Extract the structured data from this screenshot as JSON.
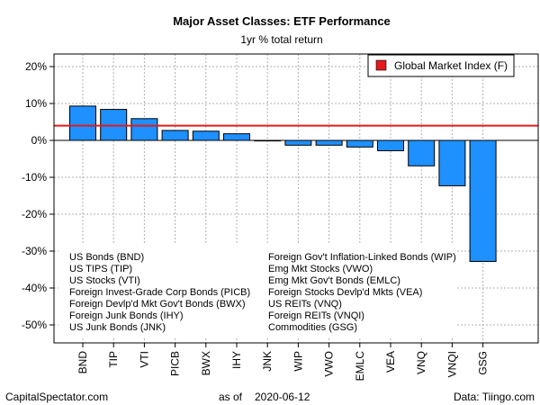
{
  "chart_data": {
    "type": "bar",
    "title": "Major Asset Classes: ETF Performance",
    "subtitle": "1yr % total return",
    "categories": [
      "BND",
      "TIP",
      "VTI",
      "PICB",
      "BWX",
      "IHY",
      "JNK",
      "WIP",
      "VWO",
      "EMLC",
      "VEA",
      "VNQ",
      "VNQI",
      "GSG"
    ],
    "values": [
      9.3,
      8.4,
      5.9,
      2.7,
      2.5,
      1.8,
      -0.1,
      -1.3,
      -1.3,
      -1.8,
      -2.8,
      -6.9,
      -12.3,
      -32.8
    ],
    "bar_color": "#1E90FF",
    "reference_line": {
      "label": "Global Market Index (F)",
      "value": 4.0,
      "color": "#E31A1C"
    },
    "ylim": [
      -55,
      24
    ],
    "yticks": [
      -50,
      -40,
      -30,
      -20,
      -10,
      0,
      10,
      20
    ],
    "ytick_labels": [
      "-50%",
      "-40%",
      "-30%",
      "-20%",
      "-10%",
      "0%",
      "10%",
      "20%"
    ],
    "grid": true,
    "legend_position": "top-right"
  },
  "key": {
    "left": [
      "US Bonds (BND)",
      "US TIPS (TIP)",
      "US Stocks (VTI)",
      "Foreign Invest-Grade Corp Bonds (PICB)",
      "Foreign Devlp'd Mkt Gov't Bonds (BWX)",
      "Foreign Junk Bonds (IHY)",
      "US Junk Bonds (JNK)"
    ],
    "right": [
      "Foreign Gov't Inflation-Linked Bonds (WIP)",
      "Emg Mkt Stocks (VWO)",
      "Emg Mkt Gov't Bonds (EMLC)",
      "Foreign Stocks Devlp'd Mkts (VEA)",
      "US REITs (VNQ)",
      "Foreign REITs (VNQI)",
      "Commodities (GSG)"
    ]
  },
  "footer": {
    "source_left": "CapitalSpectator.com",
    "as_of_label": "as of",
    "as_of_date": "2020-06-12",
    "source_right": "Data: Tiingo.com"
  }
}
